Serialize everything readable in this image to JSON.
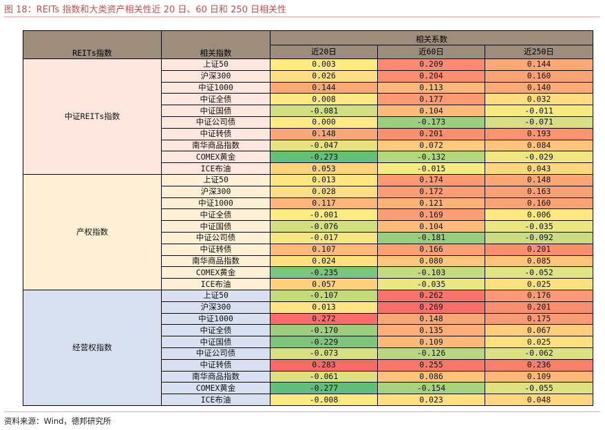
{
  "figure": {
    "title": "图 18：REITs 指数和大类资产相关性近 20 日、60 日和 250 日相关性",
    "source": "资料来源：Wind，德邦研究所"
  },
  "table": {
    "header": {
      "col_index": "REITs指数",
      "col_asset": "相关指数",
      "group_label": "相关系数",
      "periods": [
        "近20日",
        "近60日",
        "近250日"
      ]
    },
    "groups": [
      {
        "name": "中证REITs指数",
        "bg": "#fde6dd",
        "rows": [
          {
            "asset": "上证50",
            "v20": "0.003",
            "v60": "0.209",
            "v250": "0.144"
          },
          {
            "asset": "沪深300",
            "v20": "0.026",
            "v60": "0.204",
            "v250": "0.160"
          },
          {
            "asset": "中证1000",
            "v20": "0.144",
            "v60": "0.113",
            "v250": "0.140"
          },
          {
            "asset": "中证全债",
            "v20": "0.008",
            "v60": "0.177",
            "v250": "0.032"
          },
          {
            "asset": "中证国债",
            "v20": "-0.081",
            "v60": "0.104",
            "v250": "-0.011"
          },
          {
            "asset": "中证公司债",
            "v20": "0.000",
            "v60": "-0.173",
            "v250": "-0.071"
          },
          {
            "asset": "中证转债",
            "v20": "0.148",
            "v60": "0.201",
            "v250": "0.193"
          },
          {
            "asset": "南华商品指数",
            "v20": "-0.047",
            "v60": "0.072",
            "v250": "0.084"
          },
          {
            "asset": "COMEX黄金",
            "v20": "-0.273",
            "v60": "-0.132",
            "v250": "-0.029"
          },
          {
            "asset": "ICE布油",
            "v20": "0.053",
            "v60": "-0.015",
            "v250": "0.043"
          }
        ]
      },
      {
        "name": "产权指数",
        "bg": "#fdf0d4",
        "rows": [
          {
            "asset": "上证50",
            "v20": "0.013",
            "v60": "0.174",
            "v250": "0.148"
          },
          {
            "asset": "沪深300",
            "v20": "0.028",
            "v60": "0.172",
            "v250": "0.163"
          },
          {
            "asset": "中证1000",
            "v20": "0.117",
            "v60": "0.121",
            "v250": "0.160"
          },
          {
            "asset": "中证全债",
            "v20": "-0.001",
            "v60": "0.169",
            "v250": "0.006"
          },
          {
            "asset": "中证国债",
            "v20": "-0.076",
            "v60": "0.104",
            "v250": "-0.035"
          },
          {
            "asset": "中证公司债",
            "v20": "-0.017",
            "v60": "-0.181",
            "v250": "-0.092"
          },
          {
            "asset": "中证转债",
            "v20": "0.107",
            "v60": "0.166",
            "v250": "0.201"
          },
          {
            "asset": "南华商品指数",
            "v20": "0.024",
            "v60": "0.080",
            "v250": "0.085"
          },
          {
            "asset": "COMEX黄金",
            "v20": "-0.235",
            "v60": "-0.103",
            "v250": "-0.052"
          },
          {
            "asset": "ICE布油",
            "v20": "0.057",
            "v60": "-0.035",
            "v250": "0.025"
          }
        ]
      },
      {
        "name": "经营权指数",
        "bg": "#d9e0f1",
        "rows": [
          {
            "asset": "上证50",
            "v20": "-0.107",
            "v60": "0.262",
            "v250": "0.176"
          },
          {
            "asset": "沪深300",
            "v20": "0.013",
            "v60": "0.269",
            "v250": "0.201"
          },
          {
            "asset": "中证1000",
            "v20": "0.272",
            "v60": "0.148",
            "v250": "0.175"
          },
          {
            "asset": "中证全债",
            "v20": "-0.170",
            "v60": "0.135",
            "v250": "0.067"
          },
          {
            "asset": "中证国债",
            "v20": "-0.229",
            "v60": "0.109",
            "v250": "0.025"
          },
          {
            "asset": "中证公司债",
            "v20": "-0.073",
            "v60": "-0.126",
            "v250": "-0.062"
          },
          {
            "asset": "中证转债",
            "v20": "0.283",
            "v60": "0.255",
            "v250": "0.236"
          },
          {
            "asset": "南华商品指数",
            "v20": "-0.061",
            "v60": "0.086",
            "v250": "0.109"
          },
          {
            "asset": "COMEX黄金",
            "v20": "-0.277",
            "v60": "-0.154",
            "v250": "-0.055"
          },
          {
            "asset": "ICE布油",
            "v20": "-0.008",
            "v60": "0.023",
            "v250": "0.048"
          }
        ]
      }
    ]
  },
  "colors": {
    "header_bg": "#9e8d7c",
    "scale_low": "#63be7b",
    "scale_mid": "#ffeb84",
    "scale_high": "#f8696b"
  }
}
